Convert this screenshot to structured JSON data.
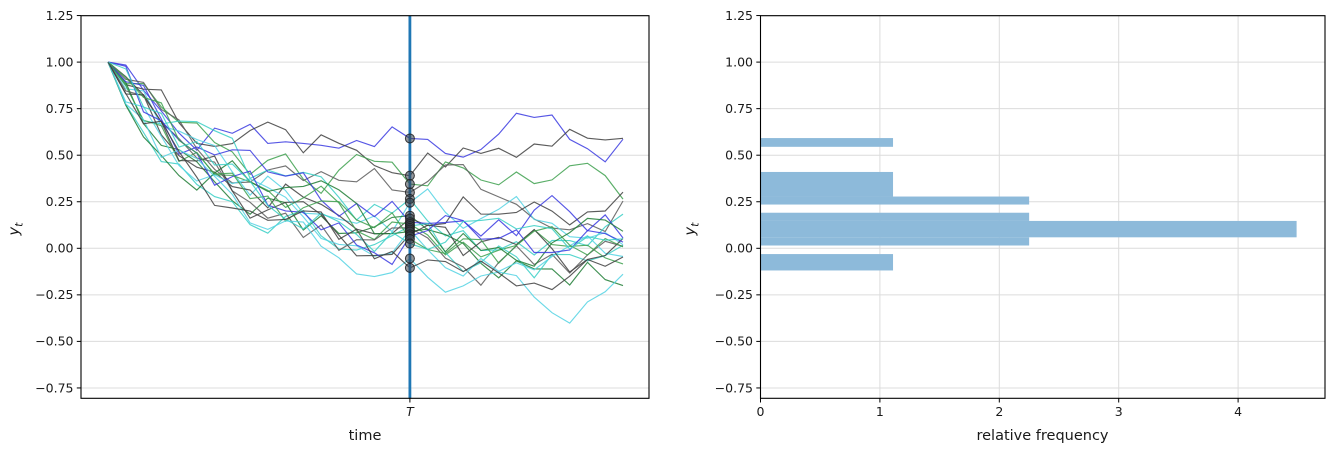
{
  "page": {
    "background": "#ffffff",
    "description": "two-panel figure: simulated time-series trajectories with evaluation time T, and horizontal histogram of values at T"
  },
  "labels": {
    "y_main": "y",
    "y_sub": "t"
  },
  "chart_data": [
    {
      "type": "line",
      "title": "",
      "xlabel": "time",
      "ylabel": "y_t",
      "x_axis_tick_label": "T",
      "ylim": [
        -0.806,
        1.25
      ],
      "grid": "horizontal",
      "yticks": {
        "values": [
          1.25,
          1.0,
          0.75,
          0.5,
          0.25,
          0.0,
          -0.25,
          -0.5,
          -0.75
        ],
        "labels": [
          "1.25",
          "1.00",
          "0.75",
          "0.50",
          "0.25",
          "0.00",
          "−0.25",
          "−0.50",
          "−0.75"
        ]
      },
      "n_points": 30,
      "T_index": 17,
      "start_value": 1.0,
      "decay_tau": 7.2,
      "noise": {
        "ar": 0.6,
        "amp": 0.11
      },
      "vline": {
        "at": "T",
        "color": "#1f77b4"
      },
      "marker_color": "#3a4048",
      "marker_edge_color": "#1f1f1f",
      "values_at_T": [
        0.59,
        0.39,
        0.345,
        0.3,
        0.265,
        0.245,
        0.175,
        0.16,
        0.14,
        0.13,
        0.12,
        0.11,
        0.1,
        0.09,
        0.075,
        0.065,
        0.05,
        0.025,
        -0.055,
        -0.105
      ],
      "series": [
        {
          "seed": 3,
          "color": "#3a3ae0",
          "y_at_T": 0.59
        },
        {
          "seed": 7,
          "color": "#3f3f3f",
          "y_at_T": 0.39
        },
        {
          "seed": 12,
          "color": "#3da04e",
          "y_at_T": 0.345
        },
        {
          "seed": 19,
          "color": "#5a5a5a",
          "y_at_T": 0.3
        },
        {
          "seed": 23,
          "color": "#38cfc6",
          "y_at_T": 0.265
        },
        {
          "seed": 31,
          "color": "#52d2e3",
          "y_at_T": 0.245
        },
        {
          "seed": 40,
          "color": "#1f7c35",
          "y_at_T": 0.175
        },
        {
          "seed": 47,
          "color": "#3f3f3f",
          "y_at_T": 0.16
        },
        {
          "seed": 55,
          "color": "#3a3ae0",
          "y_at_T": 0.14
        },
        {
          "seed": 61,
          "color": "#3da04e",
          "y_at_T": 0.13
        },
        {
          "seed": 68,
          "color": "#38cfc6",
          "y_at_T": 0.12
        },
        {
          "seed": 74,
          "color": "#5a5a5a",
          "y_at_T": 0.11
        },
        {
          "seed": 83,
          "color": "#52d2e3",
          "y_at_T": 0.1
        },
        {
          "seed": 90,
          "color": "#1f7c35",
          "y_at_T": 0.09
        },
        {
          "seed": 97,
          "color": "#3f3f3f",
          "y_at_T": 0.075
        },
        {
          "seed": 104,
          "color": "#3a3ae0",
          "y_at_T": 0.065
        },
        {
          "seed": 113,
          "color": "#3da04e",
          "y_at_T": 0.05
        },
        {
          "seed": 121,
          "color": "#38cfc6",
          "y_at_T": 0.025
        },
        {
          "seed": 129,
          "color": "#52d2e3",
          "y_at_T": -0.055
        },
        {
          "seed": 137,
          "color": "#3f3f3f",
          "y_at_T": -0.105
        }
      ]
    },
    {
      "type": "bar",
      "orientation": "horizontal",
      "xlabel": "relative frequency",
      "ylabel": "y_t",
      "xlim": [
        0,
        4.73
      ],
      "ylim": [
        -0.806,
        1.25
      ],
      "grid": "both",
      "xticks": {
        "values": [
          0,
          1,
          2,
          3,
          4
        ],
        "labels": [
          "0",
          "1",
          "2",
          "3",
          "4"
        ]
      },
      "yticks": {
        "values": [
          1.25,
          1.0,
          0.75,
          0.5,
          0.25,
          0.0,
          -0.25,
          -0.5,
          -0.75
        ],
        "labels": [
          "1.25",
          "1.00",
          "0.75",
          "0.50",
          "0.25",
          "0.00",
          "−0.25",
          "−0.50",
          "−0.75"
        ]
      },
      "bar_color": "#8dbada",
      "bars": [
        {
          "y0": 0.545,
          "y1": 0.592,
          "width": 1.11
        },
        {
          "y0": 0.278,
          "y1": 0.41,
          "width": 1.11
        },
        {
          "y0": 0.235,
          "y1": 0.278,
          "width": 2.25
        },
        {
          "y0": 0.147,
          "y1": 0.191,
          "width": 2.25
        },
        {
          "y0": 0.059,
          "y1": 0.147,
          "width": 4.49
        },
        {
          "y0": 0.015,
          "y1": 0.059,
          "width": 2.25
        },
        {
          "y0": -0.119,
          "y1": -0.031,
          "width": 1.11
        }
      ]
    }
  ]
}
